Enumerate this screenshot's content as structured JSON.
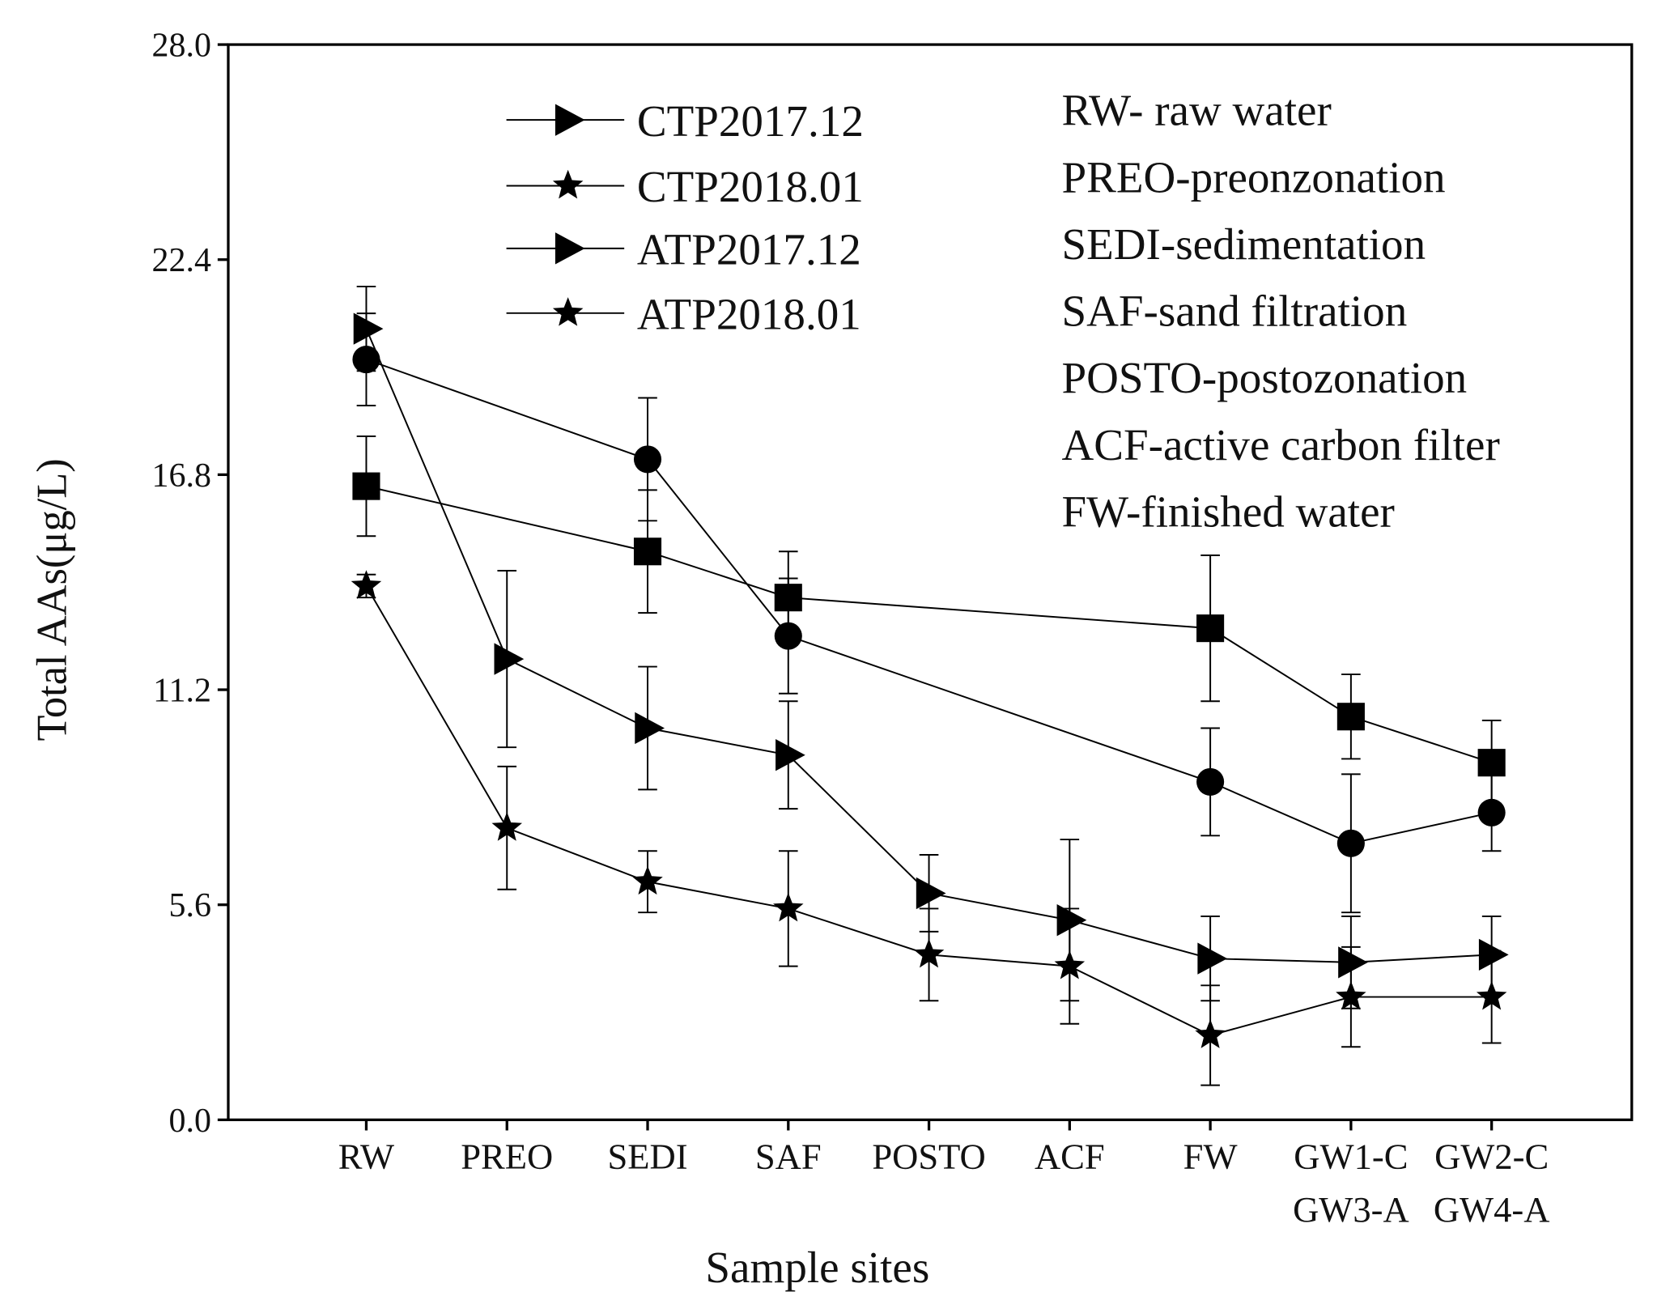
{
  "chart_data": {
    "type": "line",
    "y_label": "Total AAs(μg/L)",
    "x_label": "Sample sites",
    "categories": [
      [
        "RW"
      ],
      [
        "PREO"
      ],
      [
        "SEDI"
      ],
      [
        "SAF"
      ],
      [
        "POSTO"
      ],
      [
        "ACF"
      ],
      [
        "FW"
      ],
      [
        "GW1-C",
        "GW3-A"
      ],
      [
        "GW2-C",
        "GW4-A"
      ]
    ],
    "ylim": [
      0,
      28
    ],
    "yticks": [
      {
        "value": 0,
        "label": "0.0"
      },
      {
        "value": 5.6,
        "label": "5.6"
      },
      {
        "value": 11.2,
        "label": "11.2"
      },
      {
        "value": 16.8,
        "label": "16.8"
      },
      {
        "value": 22.4,
        "label": "22.4"
      },
      {
        "value": 28,
        "label": "28.0"
      }
    ],
    "series": [
      {
        "name": "CTP2017.12",
        "color": "#000000",
        "marker": "square",
        "legend_marker": "triangle",
        "values": [
          16.5,
          null,
          14.8,
          13.6,
          null,
          null,
          12.8,
          10.5,
          9.3
        ],
        "errors": [
          1.3,
          null,
          1.6,
          1.2,
          null,
          null,
          1.9,
          1.1,
          1.1
        ]
      },
      {
        "name": "CTP2018.01",
        "color": "#000000",
        "marker": "circle",
        "legend_marker": "star",
        "values": [
          19.8,
          null,
          17.2,
          12.6,
          null,
          null,
          8.8,
          7.2,
          8.0
        ],
        "errors": [
          1.2,
          null,
          1.6,
          1.5,
          null,
          null,
          1.4,
          1.8,
          1.0
        ]
      },
      {
        "name": "ATP2017.12",
        "color": "#000000",
        "marker": "triangle",
        "legend_marker": "triangle",
        "values": [
          20.6,
          12.0,
          10.2,
          9.5,
          5.9,
          5.2,
          4.2,
          4.1,
          4.3
        ],
        "errors": [
          1.1,
          2.3,
          1.6,
          1.4,
          1.0,
          2.1,
          1.1,
          1.2,
          1.0
        ]
      },
      {
        "name": "ATP2018.01",
        "color": "#000000",
        "marker": "star",
        "legend_marker": "star",
        "values": [
          13.9,
          7.6,
          6.2,
          5.5,
          4.3,
          4.0,
          2.2,
          3.2,
          3.2
        ],
        "errors": [
          0.3,
          1.6,
          0.8,
          1.5,
          1.2,
          1.5,
          1.3,
          1.3,
          1.2
        ]
      }
    ],
    "annotations": [
      "RW- raw water",
      "PREO-preonzonation",
      "SEDI-sedimentation",
      "SAF-sand filtration",
      "POSTO-postozonation",
      "ACF-active carbon filter",
      "FW-finished water"
    ]
  }
}
